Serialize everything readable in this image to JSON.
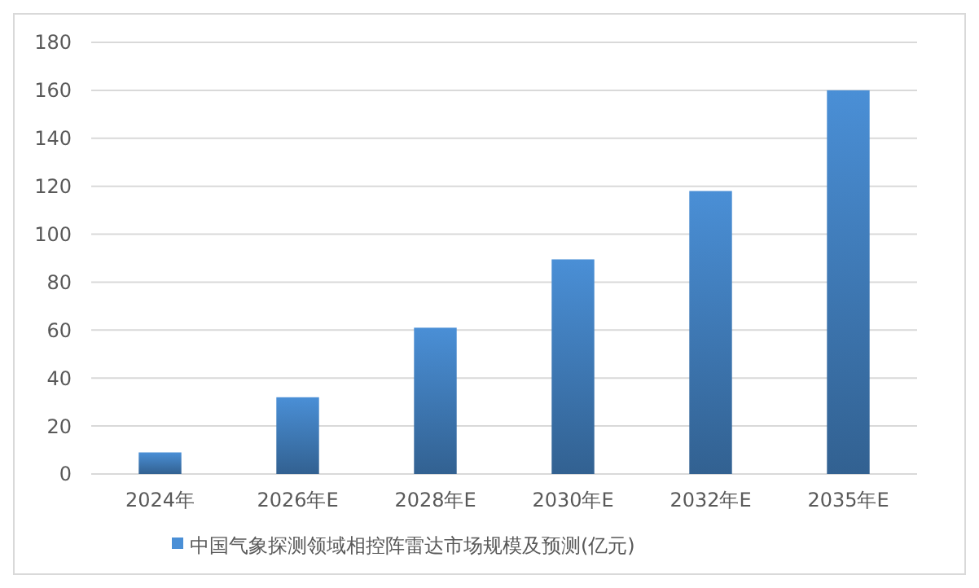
{
  "chart_data": {
    "type": "bar",
    "categories": [
      "2024年",
      "2026年E",
      "2028年E",
      "2030年E",
      "2032年E",
      "2035年E"
    ],
    "series": [
      {
        "name": "中国气象探测领域相控阵雷达市场规模及预测(亿元)",
        "color": "#4a8fd6",
        "values": [
          9,
          32,
          61,
          89.5,
          118,
          160
        ]
      }
    ],
    "ylim": [
      0,
      180
    ],
    "yticks": [
      0,
      20,
      40,
      60,
      80,
      100,
      120,
      140,
      160,
      180
    ],
    "grid": "y",
    "legend": "bottom"
  }
}
